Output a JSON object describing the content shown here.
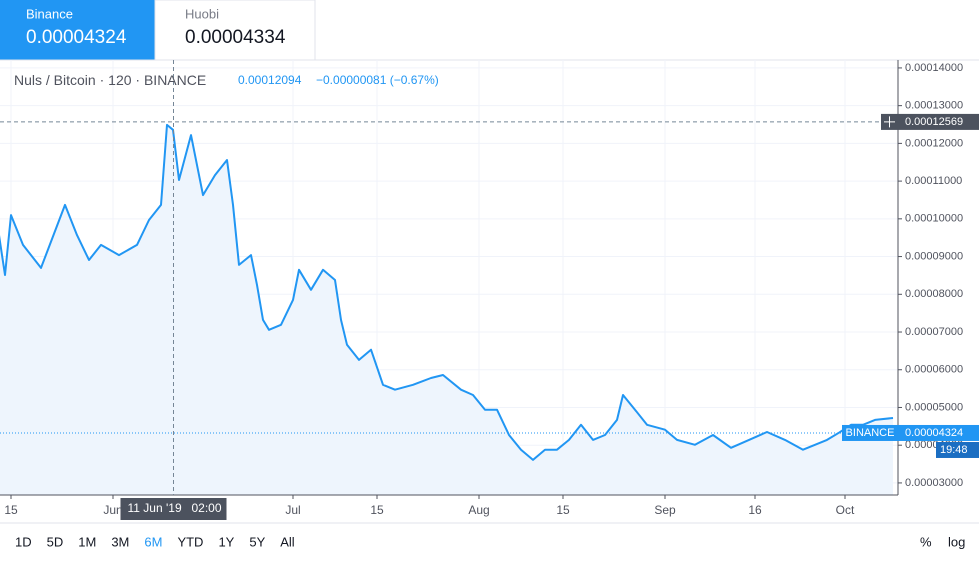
{
  "header": {
    "tabs": [
      {
        "name": "Binance",
        "price": "0.00004324"
      },
      {
        "name": "Huobi",
        "price": "0.00004334"
      }
    ],
    "legend": {
      "symbol": "Nuls / Bitcoin",
      "interval": "120",
      "exchange": "BINANCE",
      "last": "0.00012094",
      "change": "−0.00000081 (−0.67%)"
    }
  },
  "chart_data": {
    "type": "area",
    "color": "#2196f3",
    "fill": "#eef5fd",
    "grid": true,
    "x": [
      "2019-05-13",
      "2019-05-14",
      "2019-05-15",
      "2019-05-17",
      "2019-05-20",
      "2019-05-24",
      "2019-05-26",
      "2019-05-28",
      "2019-05-30",
      "2019-06-02",
      "2019-06-05",
      "2019-06-07",
      "2019-06-09",
      "2019-06-10",
      "2019-06-11",
      "2019-06-12",
      "2019-06-14",
      "2019-06-16",
      "2019-06-18",
      "2019-06-20",
      "2019-06-21",
      "2019-06-22",
      "2019-06-24",
      "2019-06-25",
      "2019-06-26",
      "2019-06-27",
      "2019-06-29",
      "2019-07-01",
      "2019-07-02",
      "2019-07-04",
      "2019-07-06",
      "2019-07-08",
      "2019-07-09",
      "2019-07-10",
      "2019-07-12",
      "2019-07-14",
      "2019-07-16",
      "2019-07-18",
      "2019-07-21",
      "2019-07-24",
      "2019-07-26",
      "2019-07-29",
      "2019-07-31",
      "2019-08-02",
      "2019-08-04",
      "2019-08-06",
      "2019-08-08",
      "2019-08-10",
      "2019-08-12",
      "2019-08-14",
      "2019-08-16",
      "2019-08-18",
      "2019-08-20",
      "2019-08-22",
      "2019-08-24",
      "2019-08-25",
      "2019-08-27",
      "2019-08-29",
      "2019-09-01",
      "2019-09-03",
      "2019-09-06",
      "2019-09-09",
      "2019-09-12",
      "2019-09-15",
      "2019-09-18",
      "2019-09-21",
      "2019-09-24",
      "2019-09-26",
      "2019-09-28",
      "2019-09-30",
      "2019-10-02",
      "2019-10-04",
      "2019-10-06",
      "2019-10-09"
    ],
    "values": [
      9.57e-05,
      8.51e-05,
      0.000101,
      9.31e-05,
      8.7e-05,
      0.0001037,
      9.57e-05,
      8.91e-05,
      9.31e-05,
      9.04e-05,
      9.31e-05,
      9.97e-05,
      0.0001037,
      0.0001249,
      0.0001236,
      0.0001103,
      0.0001222,
      0.0001063,
      0.0001116,
      0.0001156,
      0.0001037,
      8.78e-05,
      9.04e-05,
      8.25e-05,
      7.32e-05,
      7.06e-05,
      7.19e-05,
      7.85e-05,
      8.65e-05,
      8.12e-05,
      8.65e-05,
      8.38e-05,
      7.32e-05,
      6.66e-05,
      6.26e-05,
      6.53e-05,
      5.6e-05,
      5.47e-05,
      5.6e-05,
      5.78e-05,
      5.86e-05,
      5.47e-05,
      5.33e-05,
      4.94e-05,
      4.94e-05,
      4.27e-05,
      3.88e-05,
      3.61e-05,
      3.88e-05,
      3.88e-05,
      4.14e-05,
      4.54e-05,
      4.14e-05,
      4.27e-05,
      4.67e-05,
      5.33e-05,
      4.94e-05,
      4.54e-05,
      4.41e-05,
      4.14e-05,
      4.01e-05,
      4.27e-05,
      3.93e-05,
      4.14e-05,
      4.35e-05,
      4.14e-05,
      3.88e-05,
      4.01e-05,
      4.14e-05,
      4.33e-05,
      4.54e-05,
      4.54e-05,
      4.67e-05,
      4.72e-05
    ],
    "xlim": [
      "2019-05-13T04:00",
      "2019-10-09T20:00"
    ],
    "xticks": [
      {
        "value": "2019-05-15",
        "label": "15"
      },
      {
        "value": "2019-06-01",
        "label": "Jun"
      },
      {
        "value": "2019-07-01",
        "label": "Jul"
      },
      {
        "value": "2019-07-15",
        "label": "15"
      },
      {
        "value": "2019-08-01",
        "label": "Aug"
      },
      {
        "value": "2019-08-15",
        "label": "15"
      },
      {
        "value": "2019-09-01",
        "label": "Sep"
      },
      {
        "value": "2019-09-16",
        "label": "16"
      },
      {
        "value": "2019-10-01",
        "label": "Oct"
      }
    ],
    "ylim": [
      2.68e-05,
      0.0001421
    ],
    "yticks": [
      {
        "value": 3e-05,
        "label": "0.00003000"
      },
      {
        "value": 4e-05,
        "label": "0.00004000"
      },
      {
        "value": 5e-05,
        "label": "0.00005000"
      },
      {
        "value": 6e-05,
        "label": "0.00006000"
      },
      {
        "value": 7e-05,
        "label": "0.00007000"
      },
      {
        "value": 8e-05,
        "label": "0.00008000"
      },
      {
        "value": 9e-05,
        "label": "0.00009000"
      },
      {
        "value": 0.0001,
        "label": "0.00010000"
      },
      {
        "value": 0.00011,
        "label": "0.00011000"
      },
      {
        "value": 0.00012,
        "label": "0.00012000"
      },
      {
        "value": 0.00013,
        "label": "0.00013000"
      },
      {
        "value": 0.00014,
        "label": "0.00014000"
      }
    ],
    "crosshair": {
      "x": "2019-06-11T02:00",
      "date_label": "11 Jun '19",
      "time_label": "02:00",
      "price": 0.00012569
    },
    "current": {
      "price": 4.324e-05,
      "exchange": "BINANCE",
      "time": "19:48"
    }
  },
  "toolbar": {
    "ranges": [
      "1D",
      "5D",
      "1M",
      "3M",
      "6M",
      "YTD",
      "1Y",
      "5Y",
      "All"
    ],
    "active_range": "6M",
    "right": [
      "%",
      "log"
    ]
  }
}
